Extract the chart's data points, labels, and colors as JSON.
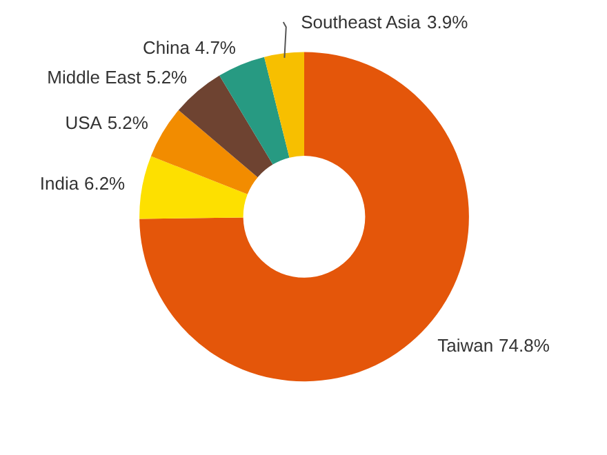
{
  "chart_data": {
    "type": "donut",
    "categories": [
      "Taiwan",
      "India",
      "USA",
      "Middle East",
      "China",
      "Southeast Asia"
    ],
    "values": [
      74.8,
      6.2,
      5.2,
      5.2,
      4.7,
      3.9
    ],
    "colors": [
      "#e4560a",
      "#fde000",
      "#f28c00",
      "#6e4331",
      "#279a82",
      "#f7bf00"
    ],
    "value_labels": [
      "74.8%",
      "6.2%",
      "5.2%",
      "5.2%",
      "4.7%",
      "3.9%"
    ]
  }
}
